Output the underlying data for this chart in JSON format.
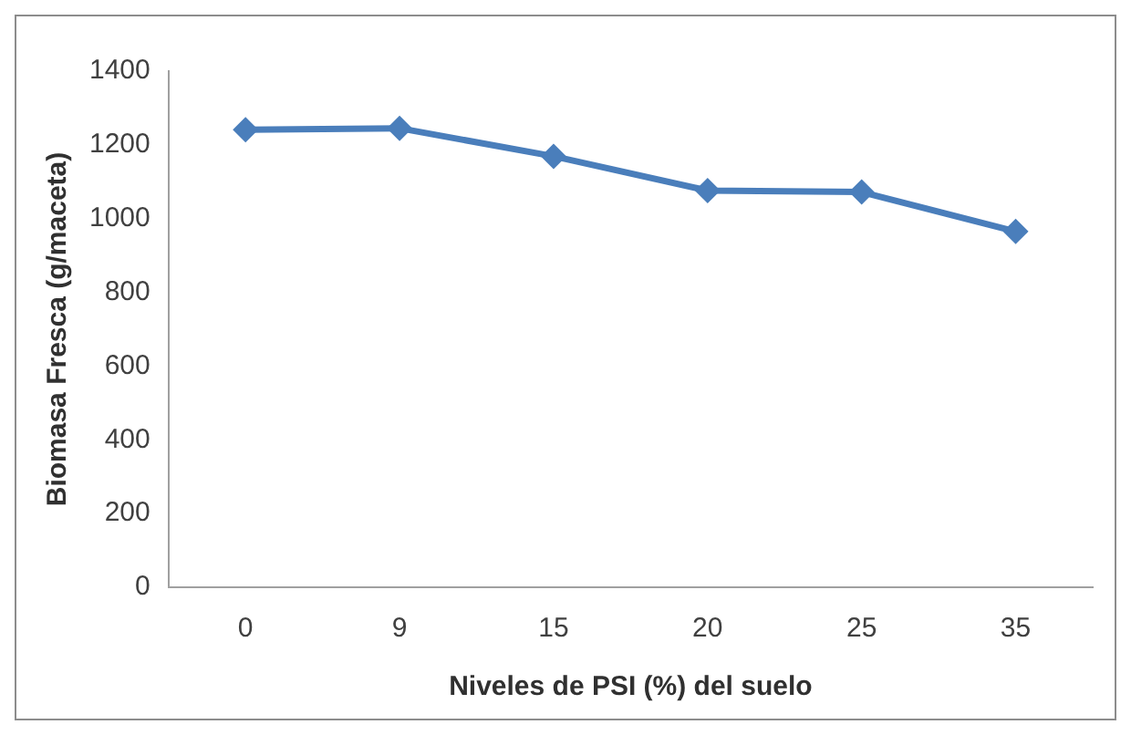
{
  "chart_data": {
    "type": "line",
    "xlabel": "Niveles de PSI (%) del suelo",
    "ylabel": "Biomasa Fresca (g/maceta)",
    "categories": [
      "0",
      "9",
      "15",
      "20",
      "25",
      "35"
    ],
    "series": [
      {
        "color": "#4a7ebb",
        "values": [
          1241,
          1245,
          1169,
          1076,
          1072,
          965
        ]
      }
    ],
    "ylim": [
      0,
      1400
    ],
    "yticks": [
      0,
      200,
      400,
      600,
      800,
      1000,
      1200,
      1400
    ],
    "grid": false,
    "legend": false,
    "marker": "diamond",
    "line_style": "solid"
  }
}
